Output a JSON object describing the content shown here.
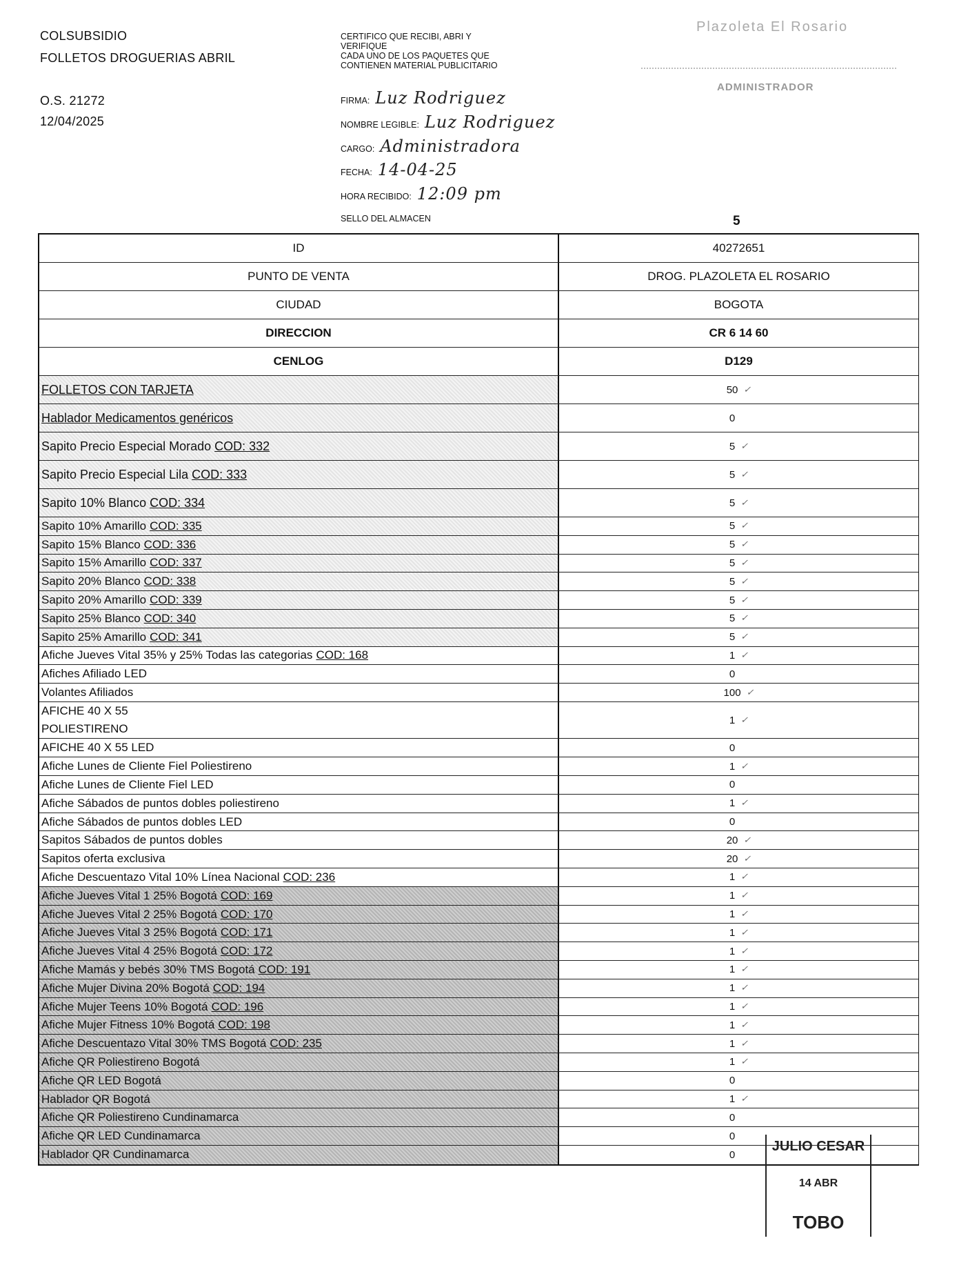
{
  "header": {
    "company": "COLSUBSIDIO",
    "campaign": "FOLLETOS DROGUERIAS ABRIL",
    "order": "O.S. 21272",
    "date": "12/04/2025",
    "page_number": "5"
  },
  "certification": {
    "lines": [
      "CERTIFICO QUE RECIBI, ABRI Y",
      "VERIFIQUE",
      "CADA  UNO DE LOS PAQUETES QUE",
      "CONTIENEN MATERIAL PUBLICITARIO"
    ],
    "firma_label": "FIRMA:",
    "firma_value": "Luz Rodriguez",
    "nombre_label": "NOMBRE LEGIBLE:",
    "nombre_value": "Luz Rodriguez",
    "cargo_label": "CARGO:",
    "cargo_value": "Administradora",
    "fecha_label": "FECHA:",
    "fecha_value": "14-04-25",
    "hora_label": "HORA RECIBIDO:",
    "hora_value": "12:09 pm",
    "sello_label": "SELLO DEL ALMACEN"
  },
  "stamps": {
    "store_stamp": [
      "Plazoleta El Rosario",
      "ADMINISTRADOR"
    ],
    "receipt_stamp": [
      "JULIO CESAR",
      "14 ABR",
      "TOBO"
    ]
  },
  "info_rows": [
    {
      "label": "ID",
      "value": "40272651",
      "bold": false
    },
    {
      "label": "PUNTO DE VENTA",
      "value": "DROG. PLAZOLETA EL ROSARIO",
      "bold": false
    },
    {
      "label": "CIUDAD",
      "value": "BOGOTA",
      "bold": false
    },
    {
      "label": "DIRECCION",
      "value": "CR 6 14 60",
      "bold": true
    },
    {
      "label": "CENLOG",
      "value": "D129",
      "bold": true
    }
  ],
  "items": [
    {
      "name": "FOLLETOS CON TARJETA",
      "cod": "",
      "qty": "50",
      "size": "tall",
      "shade": "light",
      "underline": true,
      "check": true
    },
    {
      "name": "Hablador Medicamentos genéricos",
      "cod": "",
      "qty": "0",
      "size": "tall",
      "shade": "light",
      "underline": true,
      "check": false
    },
    {
      "name": "Sapito Precio Especial Morado",
      "cod": "COD: 332",
      "qty": "5",
      "size": "tall",
      "shade": "light",
      "check": true
    },
    {
      "name": "Sapito Precio Especial Lila",
      "cod": "COD: 333",
      "qty": "5",
      "size": "tall",
      "shade": "light",
      "check": true
    },
    {
      "name": "Sapito 10% Blanco",
      "cod": "COD: 334",
      "qty": "5",
      "size": "tall",
      "shade": "light",
      "check": true
    },
    {
      "name": "Sapito 10% Amarillo",
      "cod": "COD: 335",
      "qty": "5",
      "size": "small",
      "shade": "light",
      "check": true
    },
    {
      "name": "Sapito 15% Blanco",
      "cod": "COD: 336",
      "qty": "5",
      "size": "small",
      "shade": "light",
      "check": true
    },
    {
      "name": "Sapito 15% Amarillo",
      "cod": "COD: 337",
      "qty": "5",
      "size": "small",
      "shade": "light",
      "check": true
    },
    {
      "name": "Sapito 20% Blanco",
      "cod": "COD: 338",
      "qty": "5",
      "size": "small",
      "shade": "light",
      "check": true
    },
    {
      "name": "Sapito 20% Amarillo",
      "cod": "COD: 339",
      "qty": "5",
      "size": "small",
      "shade": "light",
      "check": true
    },
    {
      "name": "Sapito 25% Blanco",
      "cod": "COD: 340",
      "qty": "5",
      "size": "small",
      "shade": "light",
      "check": true
    },
    {
      "name": "Sapito 25% Amarillo",
      "cod": "COD: 341",
      "qty": "5",
      "size": "small",
      "shade": "light",
      "check": true
    },
    {
      "name": "Afiche Jueves Vital 35% y 25% Todas las categorias",
      "cod": "COD: 168",
      "qty": "1",
      "size": "small",
      "shade": "none",
      "check": true
    },
    {
      "name": "Afiches Afiliado LED",
      "cod": "",
      "qty": "0",
      "size": "small",
      "shade": "none",
      "check": false
    },
    {
      "name": "Volantes Afiliados",
      "cod": "",
      "qty": "100",
      "size": "small",
      "shade": "none",
      "check": true
    },
    {
      "name": "AFICHE 40 X 55",
      "name2": "POLIESTIRENO",
      "cod": "",
      "qty": "1",
      "size": "double",
      "shade": "none",
      "check": true
    },
    {
      "name": "AFICHE 40 X 55 LED",
      "cod": "",
      "qty": "0",
      "size": "small",
      "shade": "none",
      "check": false
    },
    {
      "name": "Afiche Lunes de Cliente Fiel Poliestireno",
      "cod": "",
      "qty": "1",
      "size": "small",
      "shade": "none",
      "check": true
    },
    {
      "name": "Afiche Lunes de Cliente Fiel LED",
      "cod": "",
      "qty": "0",
      "size": "small",
      "shade": "none",
      "check": false
    },
    {
      "name": "Afiche Sábados de puntos dobles poliestireno",
      "cod": "",
      "qty": "1",
      "size": "small",
      "shade": "none",
      "check": true
    },
    {
      "name": "Afiche Sábados de puntos dobles LED",
      "cod": "",
      "qty": "0",
      "size": "small",
      "shade": "none",
      "check": false
    },
    {
      "name": "Sapitos Sábados de puntos dobles",
      "cod": "",
      "qty": "20",
      "size": "small",
      "shade": "none",
      "check": true
    },
    {
      "name": "Sapitos oferta exclusiva",
      "cod": "",
      "qty": "20",
      "size": "small",
      "shade": "none",
      "check": true
    },
    {
      "name": "Afiche Descuentazo Vital 10% Línea Nacional",
      "cod": "COD: 236",
      "qty": "1",
      "size": "small",
      "shade": "none",
      "check": true
    },
    {
      "name": "Afiche Jueves Vital 1 25% Bogotá",
      "cod": "COD: 169",
      "qty": "1",
      "size": "small",
      "shade": "dark",
      "check": true
    },
    {
      "name": "Afiche Jueves Vital 2 25% Bogotá",
      "cod": "COD: 170",
      "qty": "1",
      "size": "small",
      "shade": "dark",
      "check": true
    },
    {
      "name": "Afiche Jueves Vital 3 25% Bogotá",
      "cod": "COD: 171",
      "qty": "1",
      "size": "small",
      "shade": "dark",
      "check": true
    },
    {
      "name": "Afiche Jueves Vital 4 25% Bogotá",
      "cod": "COD: 172",
      "qty": "1",
      "size": "small",
      "shade": "dark",
      "check": true
    },
    {
      "name": "Afiche Mamás y bebés 30% TMS Bogotá",
      "cod": "COD: 191",
      "qty": "1",
      "size": "small",
      "shade": "dark",
      "check": true
    },
    {
      "name": "Afiche Mujer Divina 20% Bogotá",
      "cod": "COD: 194",
      "qty": "1",
      "size": "small",
      "shade": "dark",
      "check": true
    },
    {
      "name": "Afiche Mujer Teens 10% Bogotá",
      "cod": "COD: 196",
      "qty": "1",
      "size": "small",
      "shade": "dark",
      "check": true
    },
    {
      "name": "Afiche Mujer Fitness 10% Bogotá",
      "cod": "COD: 198",
      "qty": "1",
      "size": "small",
      "shade": "dark",
      "check": true
    },
    {
      "name": "Afiche Descuentazo Vital 30% TMS Bogotá",
      "cod": "COD: 235",
      "qty": "1",
      "size": "small",
      "shade": "dark",
      "check": true
    },
    {
      "name": "Afiche QR Poliestireno Bogotá",
      "cod": "",
      "qty": "1",
      "size": "small",
      "shade": "dark",
      "check": true
    },
    {
      "name": "Afiche QR LED Bogotá",
      "cod": "",
      "qty": "0",
      "size": "small",
      "shade": "dark",
      "check": false
    },
    {
      "name": "Hablador QR Bogotá",
      "cod": "",
      "qty": "1",
      "size": "small",
      "shade": "dark",
      "check": true
    },
    {
      "name": "Afiche QR Poliestireno Cundinamarca",
      "cod": "",
      "qty": "0",
      "size": "small",
      "shade": "dark",
      "check": false
    },
    {
      "name": "Afiche QR LED Cundinamarca",
      "cod": "",
      "qty": "0",
      "size": "small",
      "shade": "dark",
      "check": false
    },
    {
      "name": "Hablador QR Cundinamarca",
      "cod": "",
      "qty": "0",
      "size": "small",
      "shade": "dark",
      "check": false
    }
  ],
  "check_mark": "✓"
}
